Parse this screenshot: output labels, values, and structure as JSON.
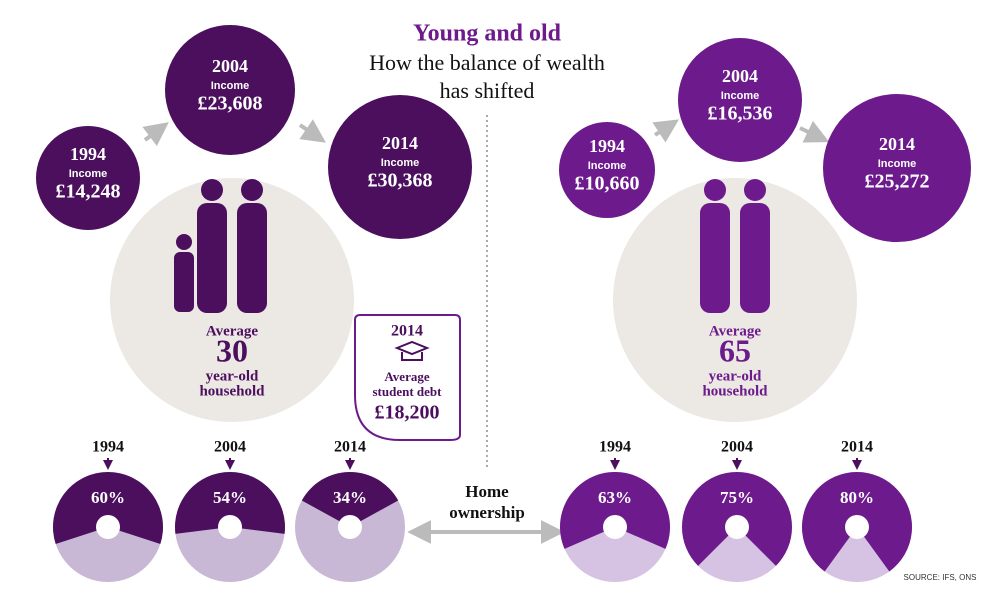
{
  "header": {
    "title": "Young and old",
    "subtitle_lines": [
      "How the balance of wealth",
      "has shifted"
    ]
  },
  "groups": [
    {
      "incomes": [
        {
          "year": "1994",
          "label": "Income",
          "amount": "£14,248"
        },
        {
          "year": "2004",
          "label": "Income",
          "amount": "£23,608"
        },
        {
          "year": "2014",
          "label": "Income",
          "amount": "£30,368"
        }
      ],
      "household": {
        "prefix": "Average",
        "age": "30",
        "line1": "year-old",
        "line2": "household"
      },
      "ownership": {
        "years": [
          "1994",
          "2004",
          "2014"
        ],
        "values": [
          60,
          54,
          34
        ],
        "value_labels": [
          "60%",
          "54%",
          "34%"
        ]
      }
    },
    {
      "incomes": [
        {
          "year": "1994",
          "label": "Income",
          "amount": "£10,660"
        },
        {
          "year": "2004",
          "label": "Income",
          "amount": "£16,536"
        },
        {
          "year": "2014",
          "label": "Income",
          "amount": "£25,272"
        }
      ],
      "household": {
        "prefix": "Average",
        "age": "65",
        "line1": "year-old",
        "line2": "household"
      },
      "ownership": {
        "years": [
          "1994",
          "2004",
          "2014"
        ],
        "values": [
          63,
          75,
          80
        ],
        "value_labels": [
          "63%",
          "75%",
          "80%"
        ]
      }
    }
  ],
  "debt": {
    "year": "2014",
    "line1": "Average",
    "line2": "student debt",
    "amount": "£18,200"
  },
  "ownership_label": [
    "Home",
    "ownership"
  ],
  "source": "SOURCE: IFS, ONS"
}
